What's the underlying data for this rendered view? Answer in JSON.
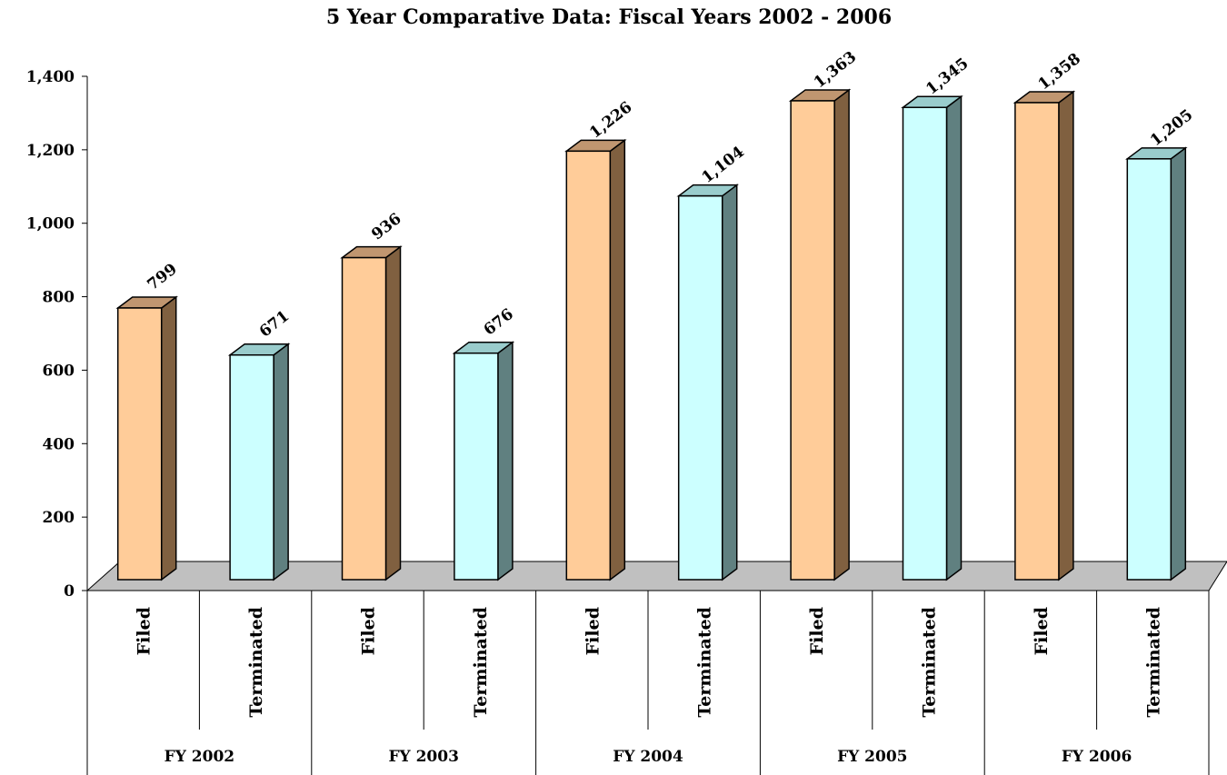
{
  "chart_data": {
    "type": "bar",
    "title": "5 Year Comparative Data: Fiscal Years 2002 - 2006",
    "ylim": [
      0,
      1400
    ],
    "yticks": [
      "0",
      "200",
      "400",
      "600",
      "800",
      "1,000",
      "1,200",
      "1,400"
    ],
    "grid": false,
    "legend": "none",
    "groups": [
      {
        "label": "FY 2002",
        "categories": [
          "Filed",
          "Terminated"
        ],
        "values": [
          799,
          671
        ],
        "value_labels": [
          "799",
          "671"
        ]
      },
      {
        "label": "FY 2003",
        "categories": [
          "Filed",
          "Terminated"
        ],
        "values": [
          936,
          676
        ],
        "value_labels": [
          "936",
          "676"
        ]
      },
      {
        "label": "FY 2004",
        "categories": [
          "Filed",
          "Terminated"
        ],
        "values": [
          1226,
          1104
        ],
        "value_labels": [
          "1,226",
          "1,104"
        ]
      },
      {
        "label": "FY 2005",
        "categories": [
          "Filed",
          "Terminated"
        ],
        "values": [
          1363,
          1345
        ],
        "value_labels": [
          "1,363",
          "1,345"
        ]
      },
      {
        "label": "FY 2006",
        "categories": [
          "Filed",
          "Terminated"
        ],
        "values": [
          1358,
          1205
        ],
        "value_labels": [
          "1,358",
          "1,205"
        ]
      }
    ],
    "colors": {
      "filed_front": "#ffcc99",
      "filed_side": "#806040",
      "filed_top": "#c09670",
      "terminated_front": "#ccffff",
      "terminated_side": "#608080",
      "terminated_top": "#99cccc",
      "floor": "#c0c0c0"
    }
  }
}
